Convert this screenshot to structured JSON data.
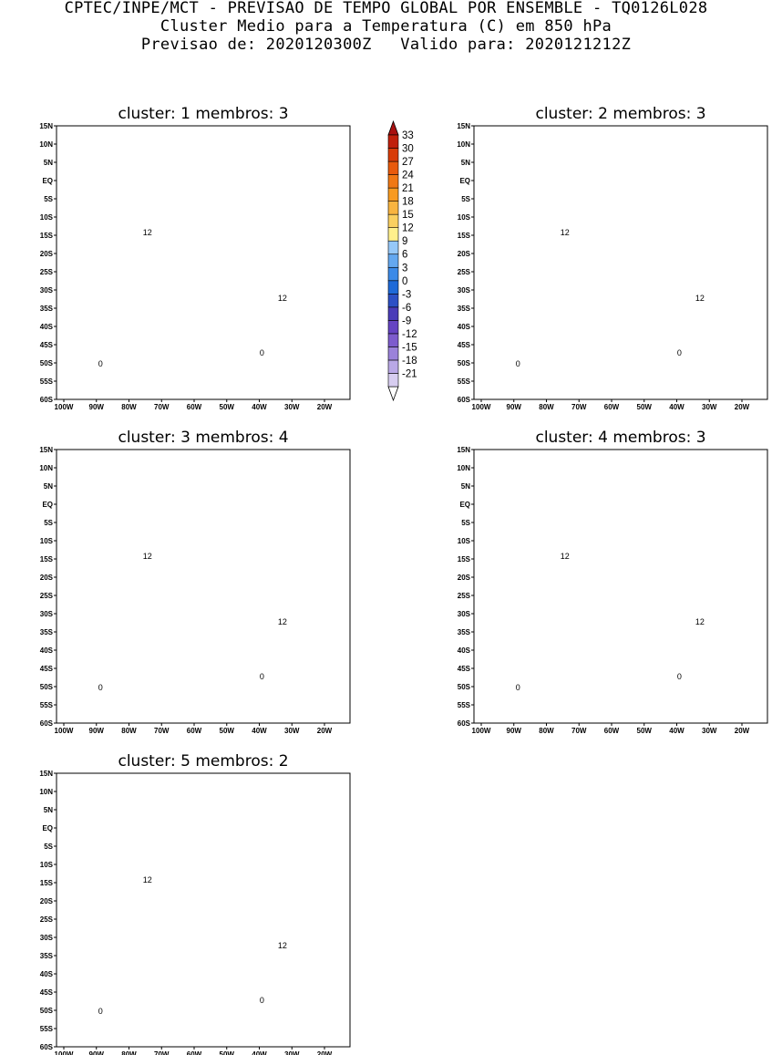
{
  "header": {
    "line1": "CPTEC/INPE/MCT - PREVISAO DE TEMPO GLOBAL POR ENSEMBLE - TQ0126L028",
    "line2": "Cluster Medio para a Temperatura (C) em 850 hPa",
    "line3": "Previsao de: 2020120300Z   Valido para: 2020121212Z"
  },
  "lat_ticks": [
    "15N",
    "10N",
    "5N",
    "EQ",
    "5S",
    "10S",
    "15S",
    "20S",
    "25S",
    "30S",
    "35S",
    "40S",
    "45S",
    "50S",
    "55S",
    "60S"
  ],
  "lon_ticks": [
    "100W",
    "90W",
    "80W",
    "70W",
    "60W",
    "50W",
    "40W",
    "30W",
    "20W"
  ],
  "colorbar": {
    "labels": [
      "33",
      "30",
      "27",
      "24",
      "21",
      "18",
      "15",
      "12",
      "9",
      "6",
      "3",
      "0",
      "-3",
      "-6",
      "-9",
      "-12",
      "-15",
      "-18",
      "-21"
    ],
    "colors": [
      "#ffffff",
      "#d7cdf0",
      "#b9a8e6",
      "#9b82da",
      "#7d5ccd",
      "#6544c3",
      "#4a3cb8",
      "#2c50c5",
      "#1e6ad8",
      "#3c8ae8",
      "#64a8f0",
      "#96c8f8",
      "#fff08c",
      "#fad060",
      "#f8b440",
      "#f89a20",
      "#f07814",
      "#e85a0c",
      "#d83c08",
      "#c0200c",
      "#a81010"
    ]
  },
  "panels": [
    {
      "title": "cluster: 1   membros: 3",
      "labels": {
        "c12a": "12",
        "c12b": "12",
        "c0a": "0",
        "c0b": "0"
      }
    },
    {
      "title": "cluster: 2   membros: 3",
      "labels": {
        "c12a": "12",
        "c12b": "12",
        "c0a": "0",
        "c0b": "0"
      }
    },
    {
      "title": "cluster: 3   membros: 4",
      "labels": {
        "c12a": "12",
        "c12b": "12",
        "c0a": "0",
        "c0b": "0"
      }
    },
    {
      "title": "cluster: 4   membros: 3",
      "labels": {
        "c12a": "12",
        "c12b": "12",
        "c0a": "0",
        "c0b": "0"
      }
    },
    {
      "title": "cluster: 5   membros: 2",
      "labels": {
        "c12a": "12",
        "c12b": "12",
        "c0a": "0",
        "c0b": "0"
      }
    }
  ]
}
